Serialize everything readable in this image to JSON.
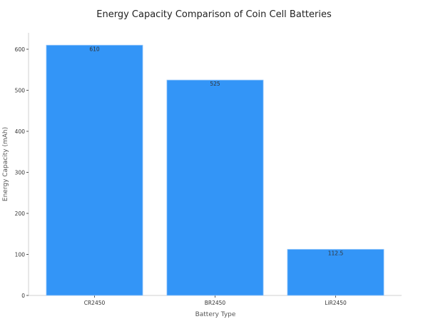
{
  "chart_data": {
    "type": "bar",
    "title": "Energy Capacity Comparison of Coin Cell Batteries",
    "xlabel": "Battery Type",
    "ylabel": "Energy Capacity (mAh)",
    "categories": [
      "CR2450",
      "BR2450",
      "LiR2450"
    ],
    "values": [
      610,
      525,
      112.5
    ],
    "value_labels": [
      "610",
      "525",
      "112.5"
    ],
    "ylim": [
      0,
      640
    ],
    "yticks": [
      0,
      100,
      200,
      300,
      400,
      500,
      600
    ],
    "grid": false,
    "bar_color": "#3395f7",
    "bar_edge_color": "#9ecbfb",
    "axis_color": "#d0d0d0",
    "text_color": "#333333",
    "label_color": "#555555"
  }
}
